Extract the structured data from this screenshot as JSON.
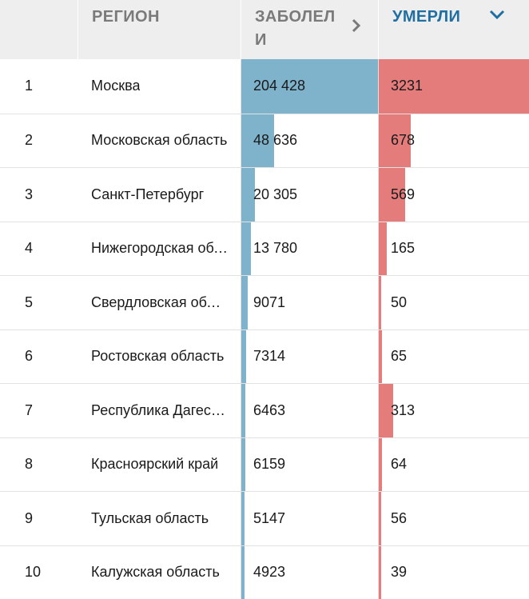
{
  "header": {
    "col_region": "РЕГИОН",
    "col_cases": "ЗАБОЛЕЛИ",
    "col_deaths": "УМЕРЛИ",
    "cases_sort_icon": "chevron-right-icon",
    "deaths_sort_icon": "chevron-down-icon"
  },
  "colors": {
    "cases_bar": "#7fb2cb",
    "deaths_bar": "#e57c7c",
    "active_header": "#1f6fa3"
  },
  "rows": [
    {
      "rank": "1",
      "region": "Москва",
      "cases": "204 428",
      "deaths": "3231",
      "cases_value": 204428,
      "deaths_value": 3231
    },
    {
      "rank": "2",
      "region": "Московская область",
      "cases": "48 636",
      "deaths": "678",
      "cases_value": 48636,
      "deaths_value": 678
    },
    {
      "rank": "3",
      "region": "Санкт-Петербург",
      "cases": "20 305",
      "deaths": "569",
      "cases_value": 20305,
      "deaths_value": 569
    },
    {
      "rank": "4",
      "region": "Нижегородская область",
      "cases": "13 780",
      "deaths": "165",
      "cases_value": 13780,
      "deaths_value": 165
    },
    {
      "rank": "5",
      "region": "Свердловская область",
      "cases": "9071",
      "deaths": "50",
      "cases_value": 9071,
      "deaths_value": 50
    },
    {
      "rank": "6",
      "region": "Ростовская область",
      "cases": "7314",
      "deaths": "65",
      "cases_value": 7314,
      "deaths_value": 65
    },
    {
      "rank": "7",
      "region": "Республика Дагестан",
      "cases": "6463",
      "deaths": "313",
      "cases_value": 6463,
      "deaths_value": 313
    },
    {
      "rank": "8",
      "region": "Красноярский край",
      "cases": "6159",
      "deaths": "64",
      "cases_value": 6159,
      "deaths_value": 64
    },
    {
      "rank": "9",
      "region": "Тульская область",
      "cases": "5147",
      "deaths": "56",
      "cases_value": 5147,
      "deaths_value": 56
    },
    {
      "rank": "10",
      "region": "Калужская область",
      "cases": "4923",
      "deaths": "39",
      "cases_value": 4923,
      "deaths_value": 39
    }
  ]
}
